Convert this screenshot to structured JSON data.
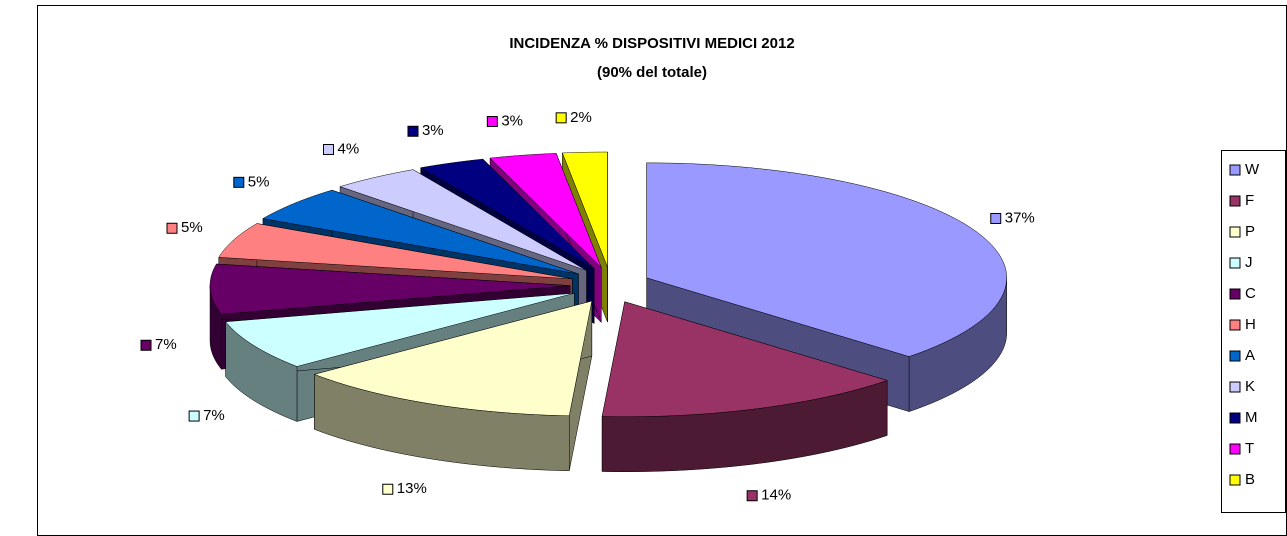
{
  "chart_data": {
    "type": "pie",
    "title": "INCIDENZA % DISPOSITIVI MEDICI  2012",
    "subtitle": "(90% del totale)",
    "categories": [
      "W",
      "F",
      "P",
      "J",
      "C",
      "H",
      "A",
      "K",
      "M",
      "T",
      "B"
    ],
    "values": [
      37,
      14,
      13,
      7,
      7,
      5,
      5,
      4,
      3,
      3,
      2
    ],
    "value_labels": [
      "37%",
      "14%",
      "13%",
      "7%",
      "7%",
      "5%",
      "5%",
      "4%",
      "3%",
      "3%",
      "2%"
    ],
    "colors": [
      "#9999ff",
      "#993366",
      "#ffffcc",
      "#ccffff",
      "#660066",
      "#ff8080",
      "#0066cc",
      "#ccccff",
      "#000080",
      "#ff00ff",
      "#ffff00"
    ],
    "legend": "right"
  }
}
